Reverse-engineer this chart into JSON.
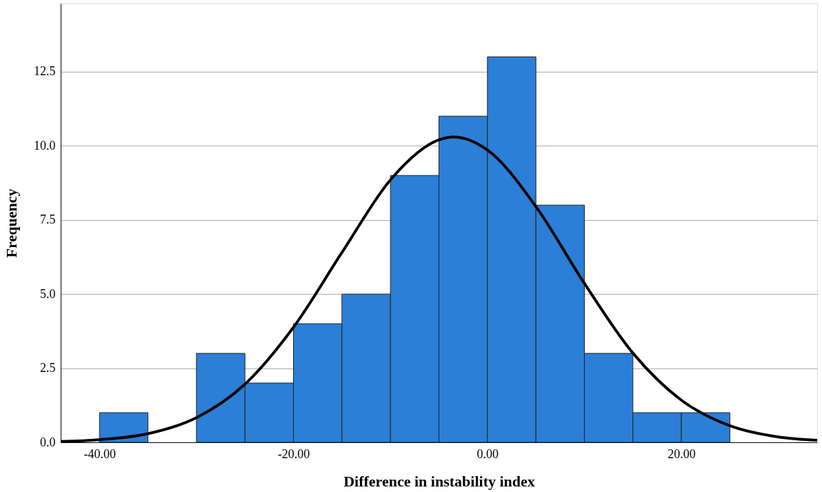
{
  "chart_data": {
    "type": "histogram",
    "xlabel": "Difference in instability index",
    "ylabel": "Frequency",
    "bins": [
      -40,
      -35,
      -30,
      -25,
      -20,
      -15,
      -10,
      -5,
      0,
      5,
      10,
      15,
      20,
      25
    ],
    "values": [
      1,
      0,
      3,
      2,
      4,
      5,
      9,
      11,
      13,
      8,
      3,
      1,
      1
    ],
    "color": "#2b7fd6",
    "series": [
      {
        "type": "line",
        "color": "#000000",
        "x": [
          -44,
          -40,
          -35,
          -30,
          -25,
          -20,
          -15,
          -10,
          -5,
          -3.5,
          0,
          5,
          10,
          15,
          20,
          25,
          30,
          34
        ],
        "values": [
          0.03,
          0.09,
          0.29,
          0.83,
          1.96,
          3.88,
          6.4,
          8.85,
          10.2,
          10.3,
          9.86,
          7.95,
          5.36,
          3.01,
          1.42,
          0.56,
          0.18,
          0.07
        ]
      }
    ],
    "xlim": [
      -44,
      34
    ],
    "xticks": [
      {
        "value": -40,
        "label": "-40.00"
      },
      {
        "value": -20,
        "label": "-20.00"
      },
      {
        "value": 0,
        "label": "0.00"
      },
      {
        "value": 20,
        "label": "20.00"
      }
    ],
    "ylim": [
      0,
      14.8
    ],
    "yticks": [
      {
        "value": 0,
        "label": "0.0"
      },
      2.5,
      {
        "value": 5,
        "label": "5.0"
      },
      7.5,
      {
        "value": 10,
        "label": "10.0"
      },
      12.5
    ],
    "grid": "y",
    "legend": false,
    "line_style": "solid",
    "marker": "none"
  }
}
